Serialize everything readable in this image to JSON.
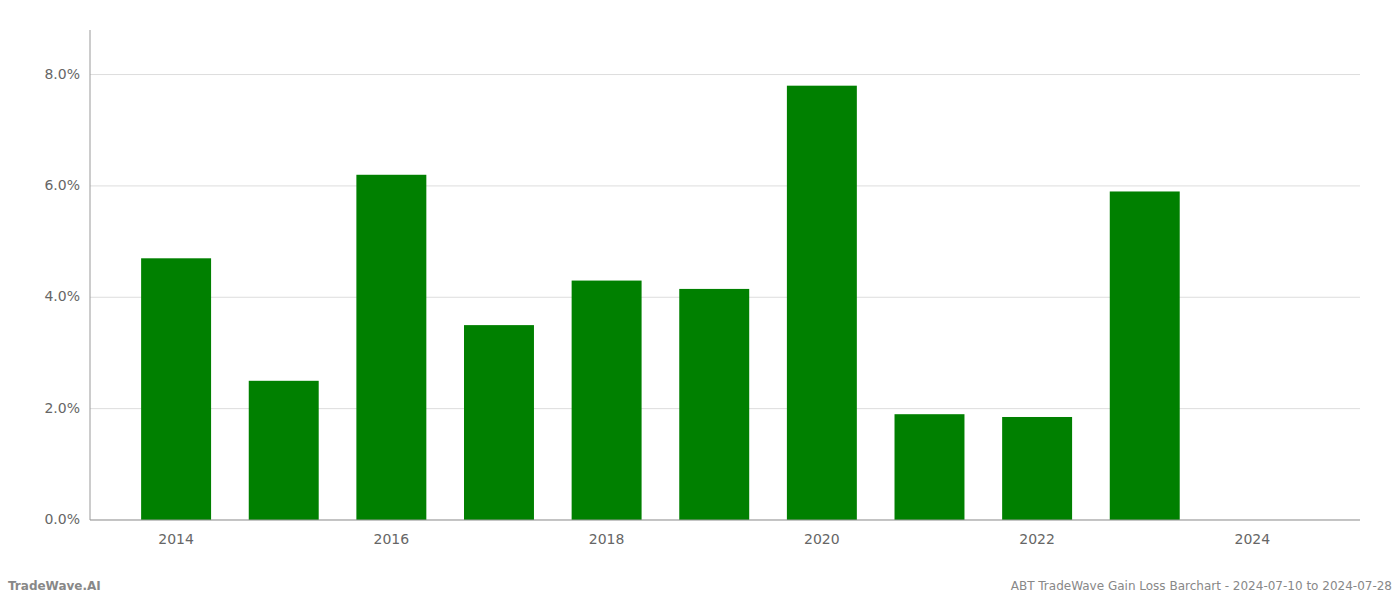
{
  "chart_data": {
    "type": "bar",
    "x": [
      2014,
      2015,
      2016,
      2017,
      2018,
      2019,
      2020,
      2021,
      2022,
      2023
    ],
    "values": [
      0.047,
      0.025,
      0.062,
      0.035,
      0.043,
      0.0415,
      0.078,
      0.019,
      0.0185,
      0.059
    ],
    "color": "#008000",
    "xlim": [
      2013.2,
      2025.0
    ],
    "xticks": [
      2014,
      2016,
      2018,
      2020,
      2022,
      2024
    ],
    "ylim": [
      0,
      0.088
    ],
    "yticks": [
      {
        "value": 0.0,
        "label": "0.0%"
      },
      {
        "value": 0.02,
        "label": "2.0%"
      },
      {
        "value": 0.04,
        "label": "4.0%"
      },
      {
        "value": 0.06,
        "label": "6.0%"
      },
      {
        "value": 0.08,
        "label": "8.0%"
      }
    ],
    "grid": true,
    "annotations": [
      "TradeWave.AI",
      "ABT TradeWave Gain Loss Barchart - 2024-07-10 to 2024-07-28"
    ]
  }
}
